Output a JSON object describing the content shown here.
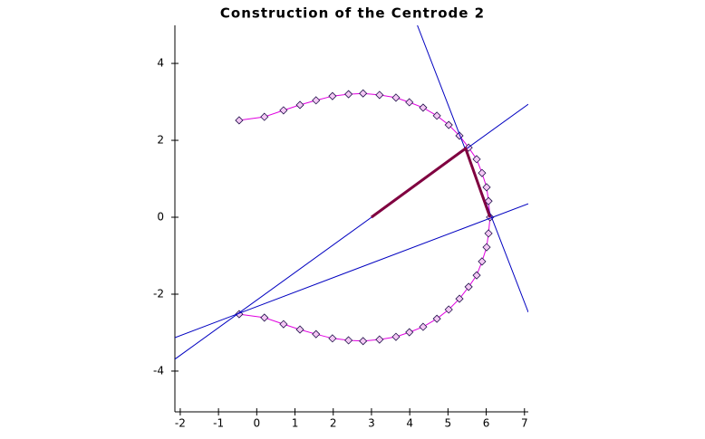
{
  "chart_data": {
    "type": "line",
    "title": "Construction of the Centrode 2",
    "xlim": [
      -2.14,
      7.1
    ],
    "ylim": [
      -5.06,
      4.99
    ],
    "xticks": [
      -2,
      -1,
      0,
      1,
      2,
      3,
      4,
      5,
      6,
      7
    ],
    "yticks": [
      -4,
      -2,
      0,
      2,
      4
    ],
    "series": [
      {
        "color": "#e000e0",
        "marker": "diamond",
        "marker_color": "#20104a",
        "width": 1,
        "x": [
          -0.46,
          0.2,
          0.7,
          1.13,
          1.55,
          1.98,
          2.4,
          2.78,
          3.21,
          3.64,
          3.99,
          4.35,
          4.71,
          5.02,
          5.3,
          5.54,
          5.75,
          5.89,
          6.01,
          6.06,
          6.1,
          6.06,
          6.01,
          5.89,
          5.75,
          5.54,
          5.3,
          5.02,
          4.71,
          4.35,
          3.99,
          3.64,
          3.21,
          2.78,
          2.4,
          1.98,
          1.55,
          1.13,
          0.7,
          0.2,
          -0.46
        ],
        "values": [
          2.52,
          2.61,
          2.78,
          2.92,
          3.04,
          3.15,
          3.2,
          3.22,
          3.18,
          3.11,
          2.99,
          2.85,
          2.64,
          2.4,
          2.12,
          1.81,
          1.51,
          1.15,
          0.78,
          0.42,
          0,
          -0.42,
          -0.78,
          -1.15,
          -1.51,
          -1.81,
          -2.12,
          -2.4,
          -2.64,
          -2.85,
          -2.99,
          -3.11,
          -3.18,
          -3.22,
          -3.2,
          -3.15,
          -3.04,
          -2.92,
          -2.78,
          -2.61,
          -2.52
        ]
      },
      {
        "color": "#0000c0",
        "width": 1,
        "x": [
          4.2,
          7.1
        ],
        "values": [
          4.99,
          -2.47
        ]
      },
      {
        "color": "#0000c0",
        "width": 1,
        "x": [
          -2.14,
          7.1
        ],
        "values": [
          -3.69,
          2.94
        ]
      },
      {
        "color": "#0000c0",
        "width": 1,
        "x": [
          -2.14,
          7.1
        ],
        "values": [
          -3.13,
          0.35
        ]
      },
      {
        "color": "#800040",
        "width": 3,
        "x": [
          3.0,
          5.46,
          6.1
        ],
        "values": [
          0,
          1.79,
          0
        ]
      }
    ]
  }
}
